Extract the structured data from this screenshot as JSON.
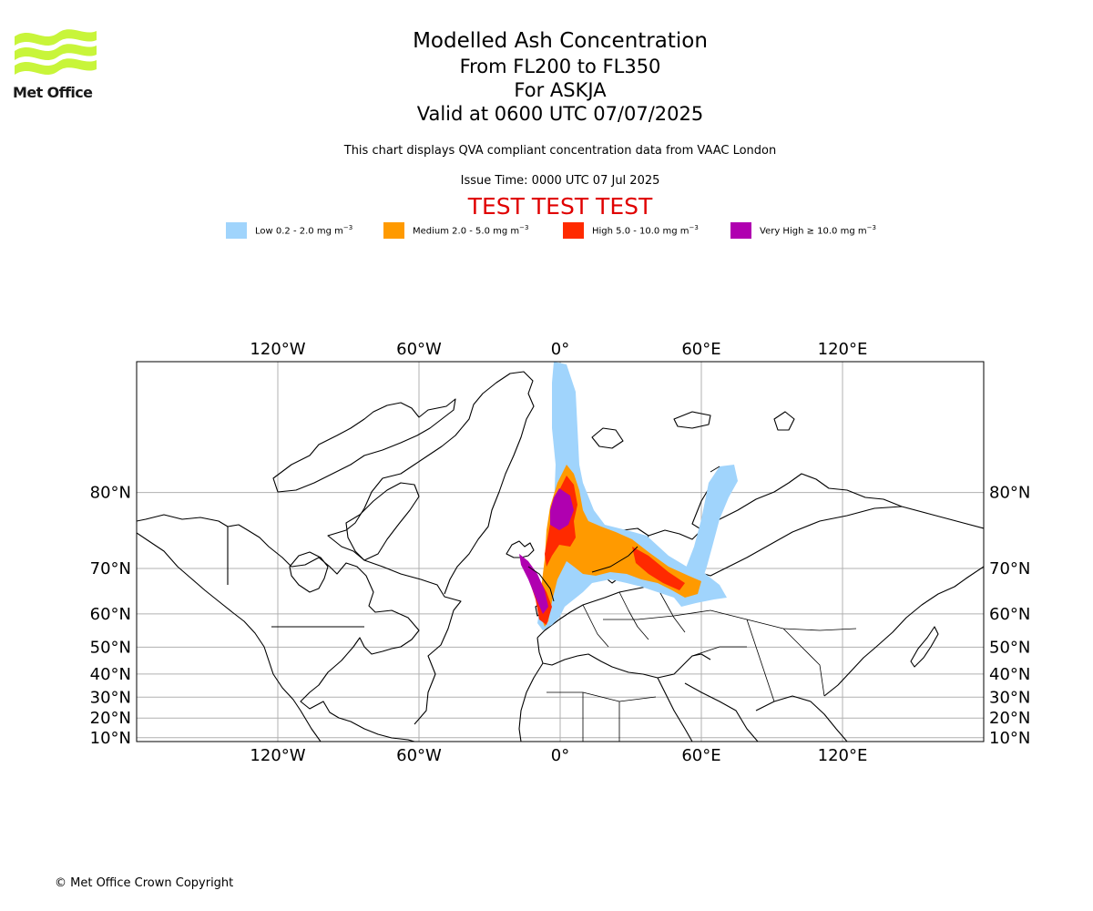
{
  "logo": {
    "text": "Met Office",
    "color": "#c8f53a"
  },
  "title": {
    "line1": "Modelled Ash Concentration",
    "line2": "From FL200 to FL350",
    "line3": "For ASKJA",
    "line4": "Valid at 0600 UTC 07/07/2025"
  },
  "subtitle": "This chart displays QVA compliant concentration data from VAAC London",
  "issue_time": "Issue Time: 0000 UTC 07 Jul 2025",
  "banner": {
    "text": "TEST TEST TEST",
    "color": "#e00000"
  },
  "legend": [
    {
      "label": "Low 0.2 - 2.0 mg m",
      "exp": "−3",
      "color": "#a0d4fc"
    },
    {
      "label": "Medium 2.0 - 5.0 mg m",
      "exp": "−3",
      "color": "#ff9a00"
    },
    {
      "label": "High 5.0 - 10.0 mg m",
      "exp": "−3",
      "color": "#ff2a00"
    },
    {
      "label": "Very High ≥ 10.0 mg m",
      "exp": "−3",
      "color": "#b000b0"
    }
  ],
  "map": {
    "projection": "mercator",
    "lon_range": [
      -180,
      180
    ],
    "lat_range": [
      8,
      87
    ],
    "lon_ticks": [
      {
        "value": -120,
        "label": "120°W"
      },
      {
        "value": -60,
        "label": "60°W"
      },
      {
        "value": 0,
        "label": "0°"
      },
      {
        "value": 60,
        "label": "60°E"
      },
      {
        "value": 120,
        "label": "120°E"
      }
    ],
    "lat_ticks": [
      {
        "value": 80,
        "label": "80°N"
      },
      {
        "value": 70,
        "label": "70°N"
      },
      {
        "value": 60,
        "label": "60°N"
      },
      {
        "value": 50,
        "label": "50°N"
      },
      {
        "value": 40,
        "label": "40°N"
      },
      {
        "value": 30,
        "label": "30°N"
      },
      {
        "value": 20,
        "label": "20°N"
      },
      {
        "value": 10,
        "label": "10°N"
      }
    ],
    "grid": true,
    "coastline_color": "#000000"
  },
  "copyright": "© Met Office Crown Copyright"
}
